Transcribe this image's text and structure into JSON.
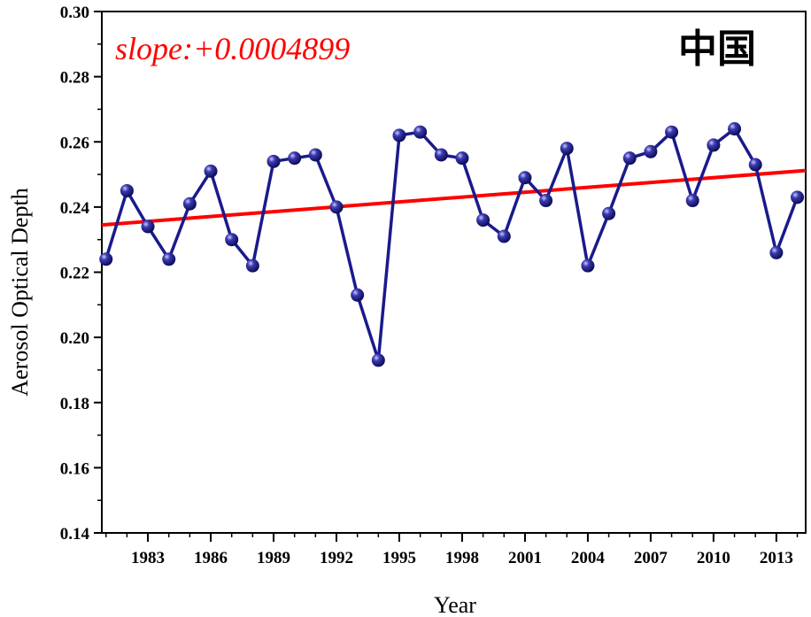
{
  "chart_data": {
    "type": "line",
    "xlabel": "Year",
    "ylabel": "Aerosol Optical Depth",
    "annotation": "slope:+0.0004899",
    "region_label": "中国",
    "xlim": [
      1980.8,
      2014.4
    ],
    "ylim": [
      0.14,
      0.3
    ],
    "y_ticks": [
      "0.14",
      "0.16",
      "0.18",
      "0.20",
      "0.22",
      "0.24",
      "0.26",
      "0.28",
      "0.30"
    ],
    "x_ticks": [
      "1983",
      "1986",
      "1989",
      "1992",
      "1995",
      "1998",
      "2001",
      "2004",
      "2007",
      "2010",
      "2013"
    ],
    "grid": false,
    "series": [
      {
        "color": "#1a1a8c",
        "x": [
          1981,
          1982,
          1983,
          1984,
          1985,
          1986,
          1987,
          1988,
          1989,
          1990,
          1991,
          1992,
          1993,
          1994,
          1995,
          1996,
          1997,
          1998,
          1999,
          2000,
          2001,
          2002,
          2003,
          2004,
          2005,
          2006,
          2007,
          2008,
          2009,
          2010,
          2011,
          2012,
          2013,
          2014
        ],
        "y": [
          0.224,
          0.245,
          0.234,
          0.224,
          0.241,
          0.251,
          0.23,
          0.222,
          0.254,
          0.255,
          0.256,
          0.24,
          0.213,
          0.193,
          0.262,
          0.263,
          0.256,
          0.255,
          0.236,
          0.231,
          0.249,
          0.242,
          0.258,
          0.222,
          0.238,
          0.255,
          0.257,
          0.263,
          0.242,
          0.259,
          0.264,
          0.253,
          0.226,
          0.243
        ]
      }
    ],
    "trend": {
      "color": "#ff0000",
      "y_start": 0.2345,
      "y_end": 0.2512
    }
  }
}
